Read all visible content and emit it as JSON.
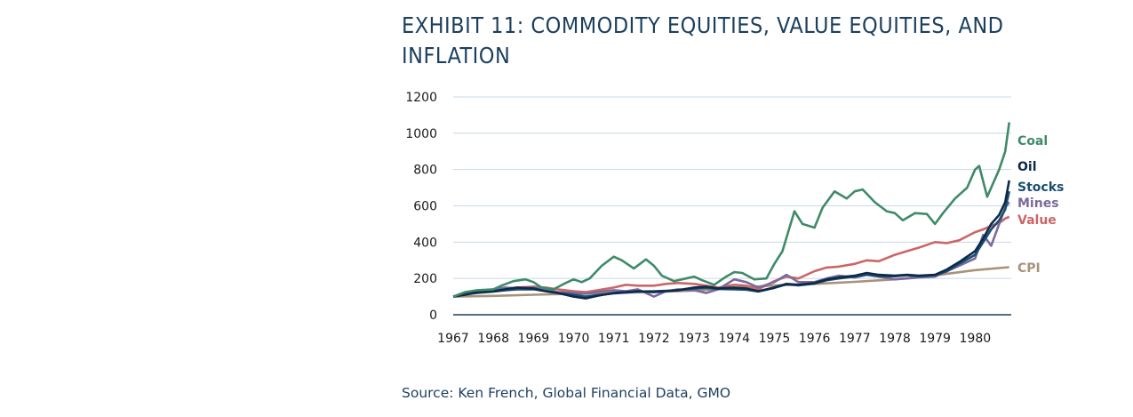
{
  "title": "EXHIBIT 11: COMMODITY EQUITIES, VALUE EQUITIES, AND INFLATION",
  "source": "Source: Ken French, Global Financial Data, GMO",
  "chart_data": {
    "type": "line",
    "title": "EXHIBIT 11: COMMODITY EQUITIES, VALUE EQUITIES, AND INFLATION",
    "xlabel": "",
    "ylabel": "",
    "xlim": [
      1967,
      1980.9
    ],
    "ylim": [
      0,
      1200
    ],
    "yticks": [
      0,
      200,
      400,
      600,
      800,
      1000,
      1200
    ],
    "xticks": [
      "1967",
      "1968",
      "1969",
      "1970",
      "1971",
      "1972",
      "1973",
      "1974",
      "1975",
      "1976",
      "1977",
      "1978",
      "1979",
      "1980"
    ],
    "grid": "horizontal",
    "legend": "end-of-line labels",
    "series": [
      {
        "name": "Coal",
        "color": "#3f8a68",
        "x": [
          1967,
          1967.3,
          1967.6,
          1968,
          1968.2,
          1968.5,
          1968.8,
          1969,
          1969.2,
          1969.5,
          1969.8,
          1970,
          1970.2,
          1970.4,
          1970.7,
          1971,
          1971.2,
          1971.5,
          1971.8,
          1972,
          1972.2,
          1972.5,
          1972.8,
          1973,
          1973.2,
          1973.5,
          1973.8,
          1974,
          1974.2,
          1974.5,
          1974.8,
          1975,
          1975.2,
          1975.5,
          1975.7,
          1976,
          1976.2,
          1976.5,
          1976.8,
          1977,
          1977.2,
          1977.5,
          1977.8,
          1978,
          1978.2,
          1978.5,
          1978.8,
          1979,
          1979.2,
          1979.5,
          1979.8,
          1980,
          1980.1,
          1980.3,
          1980.6,
          1980.75,
          1980.85
        ],
        "values": [
          100,
          125,
          135,
          140,
          160,
          185,
          195,
          180,
          150,
          140,
          175,
          195,
          180,
          200,
          270,
          320,
          300,
          255,
          305,
          270,
          215,
          185,
          200,
          210,
          190,
          165,
          210,
          235,
          230,
          195,
          200,
          280,
          350,
          570,
          500,
          480,
          590,
          680,
          640,
          680,
          690,
          620,
          570,
          560,
          520,
          560,
          555,
          500,
          560,
          640,
          700,
          800,
          820,
          650,
          800,
          900,
          1060
        ]
      },
      {
        "name": "Oil",
        "color": "#0d2a4a",
        "x": [
          1967,
          1967.3,
          1967.6,
          1968,
          1968.3,
          1968.6,
          1969,
          1969.3,
          1969.6,
          1970,
          1970.3,
          1970.6,
          1971,
          1971.3,
          1971.6,
          1972,
          1972.3,
          1972.6,
          1973,
          1973.3,
          1973.6,
          1974,
          1974.3,
          1974.6,
          1975,
          1975.3,
          1975.6,
          1976,
          1976.3,
          1976.6,
          1977,
          1977.3,
          1977.6,
          1978,
          1978.3,
          1978.6,
          1979,
          1979.3,
          1979.6,
          1980,
          1980.2,
          1980.4,
          1980.6,
          1980.75,
          1980.85
        ],
        "values": [
          100,
          110,
          125,
          130,
          140,
          150,
          145,
          130,
          120,
          100,
          90,
          105,
          120,
          125,
          130,
          125,
          130,
          135,
          150,
          155,
          145,
          150,
          145,
          130,
          150,
          170,
          165,
          175,
          195,
          205,
          215,
          230,
          220,
          215,
          220,
          215,
          220,
          250,
          290,
          350,
          420,
          500,
          550,
          620,
          740
        ]
      },
      {
        "name": "Stocks",
        "color": "#1b4f72",
        "x": [
          1967,
          1967.3,
          1967.6,
          1968,
          1968.3,
          1968.6,
          1969,
          1969.3,
          1969.6,
          1970,
          1970.3,
          1970.6,
          1971,
          1971.3,
          1971.6,
          1972,
          1972.3,
          1972.6,
          1973,
          1973.3,
          1973.6,
          1974,
          1974.3,
          1974.6,
          1975,
          1975.3,
          1975.6,
          1976,
          1976.3,
          1976.6,
          1977,
          1977.3,
          1977.6,
          1978,
          1978.3,
          1978.6,
          1979,
          1979.3,
          1979.6,
          1980,
          1980.2,
          1980.4,
          1980.6,
          1980.75,
          1980.85
        ],
        "values": [
          100,
          112,
          120,
          128,
          135,
          140,
          140,
          130,
          120,
          110,
          100,
          108,
          118,
          122,
          128,
          130,
          132,
          135,
          145,
          148,
          142,
          140,
          138,
          128,
          148,
          168,
          162,
          172,
          190,
          200,
          210,
          222,
          212,
          212,
          218,
          212,
          218,
          240,
          280,
          330,
          400,
          470,
          520,
          580,
          680
        ]
      },
      {
        "name": "Mines",
        "color": "#7b6a9b",
        "x": [
          1967,
          1967.3,
          1967.6,
          1968,
          1968.3,
          1968.6,
          1969,
          1969.3,
          1969.6,
          1970,
          1970.3,
          1970.6,
          1971,
          1971.3,
          1971.6,
          1972,
          1972.3,
          1972.6,
          1973,
          1973.3,
          1973.6,
          1974,
          1974.3,
          1974.6,
          1975,
          1975.3,
          1975.6,
          1976,
          1976.3,
          1976.6,
          1977,
          1977.3,
          1977.6,
          1978,
          1978.3,
          1978.6,
          1979,
          1979.3,
          1979.6,
          1980,
          1980.2,
          1980.4,
          1980.6,
          1980.75,
          1980.85
        ],
        "values": [
          100,
          115,
          130,
          140,
          150,
          145,
          150,
          140,
          125,
          120,
          115,
          125,
          135,
          130,
          140,
          100,
          130,
          140,
          135,
          120,
          140,
          195,
          180,
          150,
          180,
          220,
          180,
          180,
          200,
          215,
          205,
          220,
          210,
          195,
          200,
          205,
          210,
          240,
          270,
          310,
          440,
          380,
          500,
          590,
          620
        ]
      },
      {
        "name": "Value",
        "color": "#cc6666",
        "x": [
          1967,
          1967.3,
          1967.6,
          1968,
          1968.3,
          1968.6,
          1969,
          1969.3,
          1969.6,
          1970,
          1970.3,
          1970.6,
          1971,
          1971.3,
          1971.6,
          1972,
          1972.3,
          1972.6,
          1973,
          1973.3,
          1973.6,
          1974,
          1974.3,
          1974.6,
          1975,
          1975.3,
          1975.6,
          1976,
          1976.3,
          1976.6,
          1977,
          1977.3,
          1977.6,
          1978,
          1978.3,
          1978.6,
          1979,
          1979.3,
          1979.6,
          1980,
          1980.2,
          1980.4,
          1980.6,
          1980.75,
          1980.85
        ],
        "values": [
          100,
          118,
          125,
          132,
          145,
          150,
          155,
          150,
          140,
          130,
          125,
          135,
          150,
          165,
          160,
          160,
          170,
          175,
          170,
          160,
          150,
          165,
          160,
          140,
          185,
          210,
          200,
          240,
          260,
          265,
          280,
          300,
          295,
          330,
          350,
          370,
          400,
          395,
          410,
          455,
          470,
          490,
          505,
          530,
          540
        ]
      },
      {
        "name": "CPI",
        "color": "#a89279",
        "x": [
          1967,
          1968,
          1969,
          1970,
          1971,
          1972,
          1973,
          1974,
          1975,
          1976,
          1977,
          1978,
          1979,
          1980,
          1980.85
        ],
        "values": [
          100,
          104,
          110,
          116,
          121,
          125,
          133,
          148,
          161,
          170,
          181,
          195,
          217,
          246,
          262
        ]
      }
    ]
  }
}
